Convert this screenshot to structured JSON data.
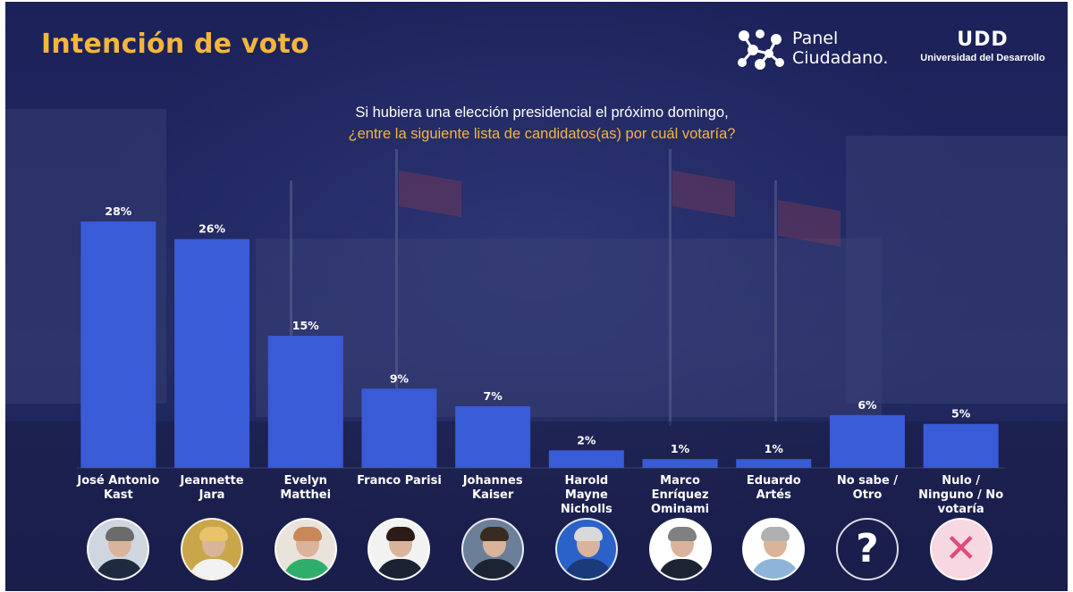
{
  "header": {
    "title": "Intención de voto",
    "logo_panel_line1": "Panel",
    "logo_panel_line2": "Ciudadano.",
    "logo_udd_mark": "UDD",
    "logo_udd_sub": "Universidad del Desarrollo"
  },
  "question": {
    "line1": "Si hubiera una elección presidencial el próximo domingo,",
    "line2": "¿entre la siguiente lista de candidatos(as) por cuál votaría?"
  },
  "colors": {
    "bar": "#3a5bd6",
    "title_accent": "#f4b63c",
    "background": "#1f2660"
  },
  "chart_data": {
    "type": "bar",
    "title": "Intención de voto",
    "categories": [
      [
        "José Antonio",
        "Kast"
      ],
      [
        "Jeannette",
        "Jara"
      ],
      [
        "Evelyn",
        "Matthei"
      ],
      [
        "Franco Parisi"
      ],
      [
        "Johannes",
        "Kaiser"
      ],
      [
        "Harold",
        "Mayne",
        "Nicholls"
      ],
      [
        "Marco",
        "Enríquez",
        "Ominami"
      ],
      [
        "Eduardo",
        "Artés"
      ],
      [
        "No sabe /",
        "Otro"
      ],
      [
        "Nulo /",
        "Ninguno / No",
        "votaría"
      ]
    ],
    "values": [
      28,
      26,
      15,
      9,
      7,
      2,
      1,
      1,
      6,
      5
    ],
    "value_labels": [
      "28%",
      "26%",
      "15%",
      "9%",
      "7%",
      "2%",
      "1%",
      "1%",
      "6%",
      "5%"
    ],
    "ylim": [
      0,
      28
    ],
    "grid": false,
    "legend": "none"
  },
  "avatars": [
    {
      "name": "kast-avatar",
      "hair": "#6b6b6b",
      "body": "#1f2a40",
      "bg": "#cfd6e0"
    },
    {
      "name": "jara-avatar",
      "hair": "#e7c26a",
      "body": "#f2f2f2",
      "bg": "#c9a64a"
    },
    {
      "name": "matthei-avatar",
      "hair": "#c9875a",
      "body": "#2fae6b",
      "bg": "#e9e3dc"
    },
    {
      "name": "parisi-avatar",
      "hair": "#2b1d15",
      "body": "#1b2333",
      "bg": "#f2f2f2"
    },
    {
      "name": "kaiser-avatar",
      "hair": "#3a2b20",
      "body": "#1c2433",
      "bg": "#6b7f99"
    },
    {
      "name": "mayne-nicholls-avatar",
      "hair": "#d9d9d9",
      "body": "#1a3a7a",
      "bg": "#2b62c9"
    },
    {
      "name": "enriquez-ominami-avatar",
      "hair": "#808080",
      "body": "#1c2433",
      "bg": "#ffffff"
    },
    {
      "name": "artes-avatar",
      "hair": "#b0b0b0",
      "body": "#8fb4d9",
      "bg": "#ffffff"
    },
    {
      "name": "question-mark-icon",
      "glyph": "?",
      "glyph_color": "#ffffff",
      "bg": "rgba(0,0,0,0)"
    },
    {
      "name": "cross-icon",
      "glyph": "✕",
      "glyph_color": "#e24b77",
      "bg": "#f7d7e2"
    }
  ]
}
